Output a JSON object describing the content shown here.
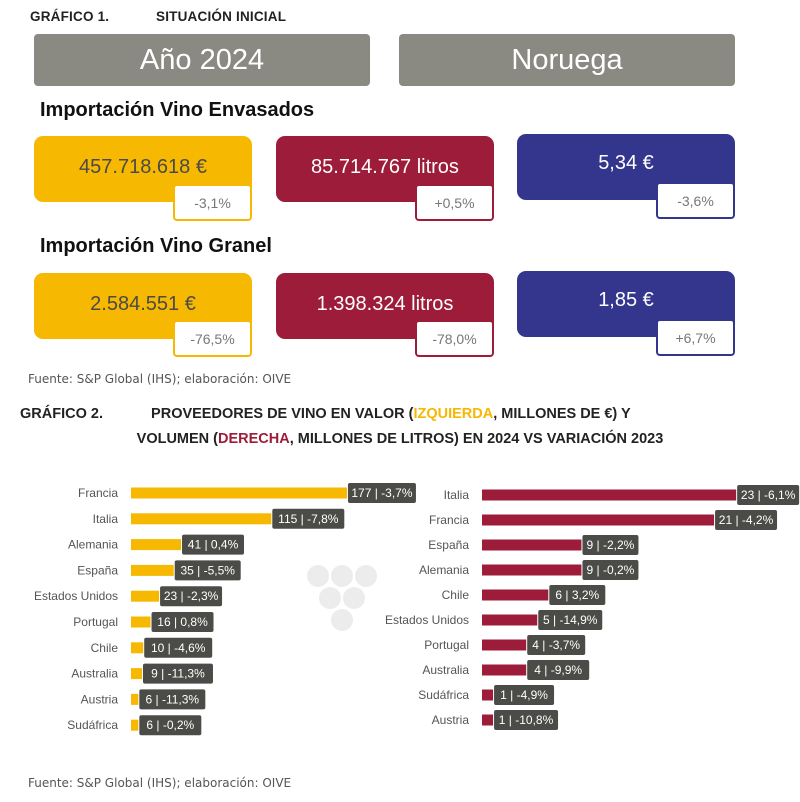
{
  "graph1": {
    "number": "GRÁFICO 1.",
    "title": "SITUACIÓN INICIAL",
    "banner_year": "Año 2024",
    "banner_country": "Noruega",
    "envasado": {
      "title": "Importación Vino Envasados",
      "value": {
        "amount": "457.718.618 €",
        "change": "-3,1%"
      },
      "volume": {
        "amount": "85.714.767 litros",
        "change": "+0,5%"
      },
      "price": {
        "amount": "5,34 €",
        "change": "-3,6%"
      }
    },
    "granel": {
      "title": "Importación Vino Granel",
      "value": {
        "amount": "2.584.551 €",
        "change": "-76,5%"
      },
      "volume": {
        "amount": "1.398.324 litros",
        "change": "-78,0%"
      },
      "price": {
        "amount": "1,85 €",
        "change": "+6,7%"
      }
    },
    "source": "Fuente: S&P Global (IHS); elaboración: OIVE"
  },
  "graph2": {
    "number": "GRÁFICO 2.",
    "title_part1": "PROVEEDORES DE VINO EN VALOR (",
    "title_highlight1": "IZQUIERDA",
    "title_part2": ", MILLONES DE €) Y",
    "title_part3": "VOLUMEN (",
    "title_highlight2": "DERECHA",
    "title_part4": ", MILLONES DE LITROS) EN 2024 VS VARIACIÓN 2023",
    "source": "Fuente: S&P Global (IHS); elaboración: OIVE"
  },
  "colors": {
    "yellow": "#f6b800",
    "red": "#9c1c3a",
    "blue": "#34368d",
    "banner_grey": "#8a8a83",
    "label_dark": "#4b4b47"
  },
  "chart_data": [
    {
      "type": "bar",
      "orientation": "horizontal",
      "unit": "millones de €",
      "categories": [
        "Francia",
        "Italia",
        "Alemania",
        "España",
        "Estados Unidos",
        "Portugal",
        "Chile",
        "Australia",
        "Austria",
        "Sudáfrica"
      ],
      "values": [
        177,
        115,
        41,
        35,
        23,
        16,
        10,
        9,
        6,
        6
      ],
      "labels": [
        "177 | -3,7%",
        "115 | -7,8%",
        "41 | 0,4%",
        "35 | -5,5%",
        "23 | -2,3%",
        "16 | 0,8%",
        "10 | -4,6%",
        "9 | -11,3%",
        "6 | -11,3%",
        "6 | -0,2%"
      ],
      "color": "#f6b800"
    },
    {
      "type": "bar",
      "orientation": "horizontal",
      "unit": "millones de litros",
      "categories": [
        "Italia",
        "Francia",
        "España",
        "Alemania",
        "Chile",
        "Estados Unidos",
        "Portugal",
        "Australia",
        "Sudáfrica",
        "Austria"
      ],
      "values": [
        23,
        21,
        9,
        9,
        6,
        5,
        4,
        4,
        1,
        1
      ],
      "labels": [
        "23 | -6,1%",
        "21 | -4,2%",
        "9 | -2,2%",
        "9 | -0,2%",
        "6 | 3,2%",
        "5 | -14,9%",
        "4 | -3,7%",
        "4 | -9,9%",
        "1 | -4,9%",
        "1 | -10,8%"
      ],
      "color": "#9c1c3a"
    }
  ]
}
